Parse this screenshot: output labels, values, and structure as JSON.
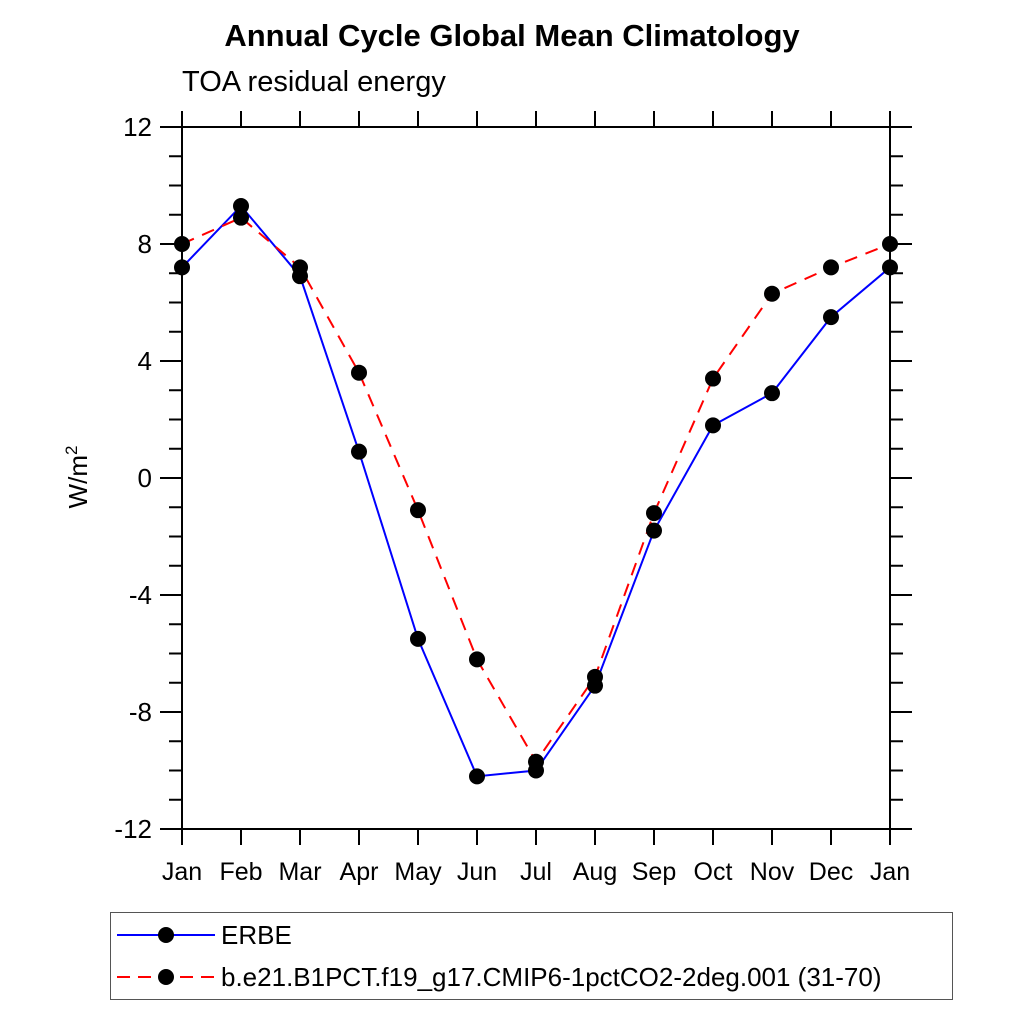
{
  "chart": {
    "title": "Annual Cycle Global Mean Climatology",
    "subtitle": "TOA residual energy",
    "ylabel_base": "W/m",
    "ylabel_sup": "2"
  },
  "chart_data": {
    "type": "line",
    "title": "Annual Cycle Global Mean Climatology",
    "subtitle": "TOA residual energy",
    "xlabel": "",
    "ylabel": "W/m2",
    "categories": [
      "Jan",
      "Feb",
      "Mar",
      "Apr",
      "May",
      "Jun",
      "Jul",
      "Aug",
      "Sep",
      "Oct",
      "Nov",
      "Dec",
      "Jan"
    ],
    "ylim": [
      -12,
      12
    ],
    "ytick_major_step": 4,
    "ytick_minor_step": 1,
    "grid": false,
    "legend_position": "bottom",
    "axis_color": "#000000",
    "marker_color": "#000000",
    "series": [
      {
        "name": "ERBE",
        "color": "#0000ff",
        "style": "solid",
        "marker": "circle",
        "values": [
          7.2,
          9.3,
          6.9,
          0.9,
          -5.5,
          -10.2,
          -10.0,
          -7.1,
          -1.8,
          1.8,
          2.9,
          5.5,
          7.2
        ]
      },
      {
        "name": "b.e21.B1PCT.f19_g17.CMIP6-1pctCO2-2deg.001 (31-70)",
        "color": "#ff0000",
        "style": "dashed",
        "marker": "circle",
        "values": [
          8.0,
          8.9,
          7.2,
          3.6,
          -1.1,
          -6.2,
          -9.7,
          -6.8,
          -1.2,
          3.4,
          6.3,
          7.2,
          8.0
        ]
      }
    ]
  }
}
